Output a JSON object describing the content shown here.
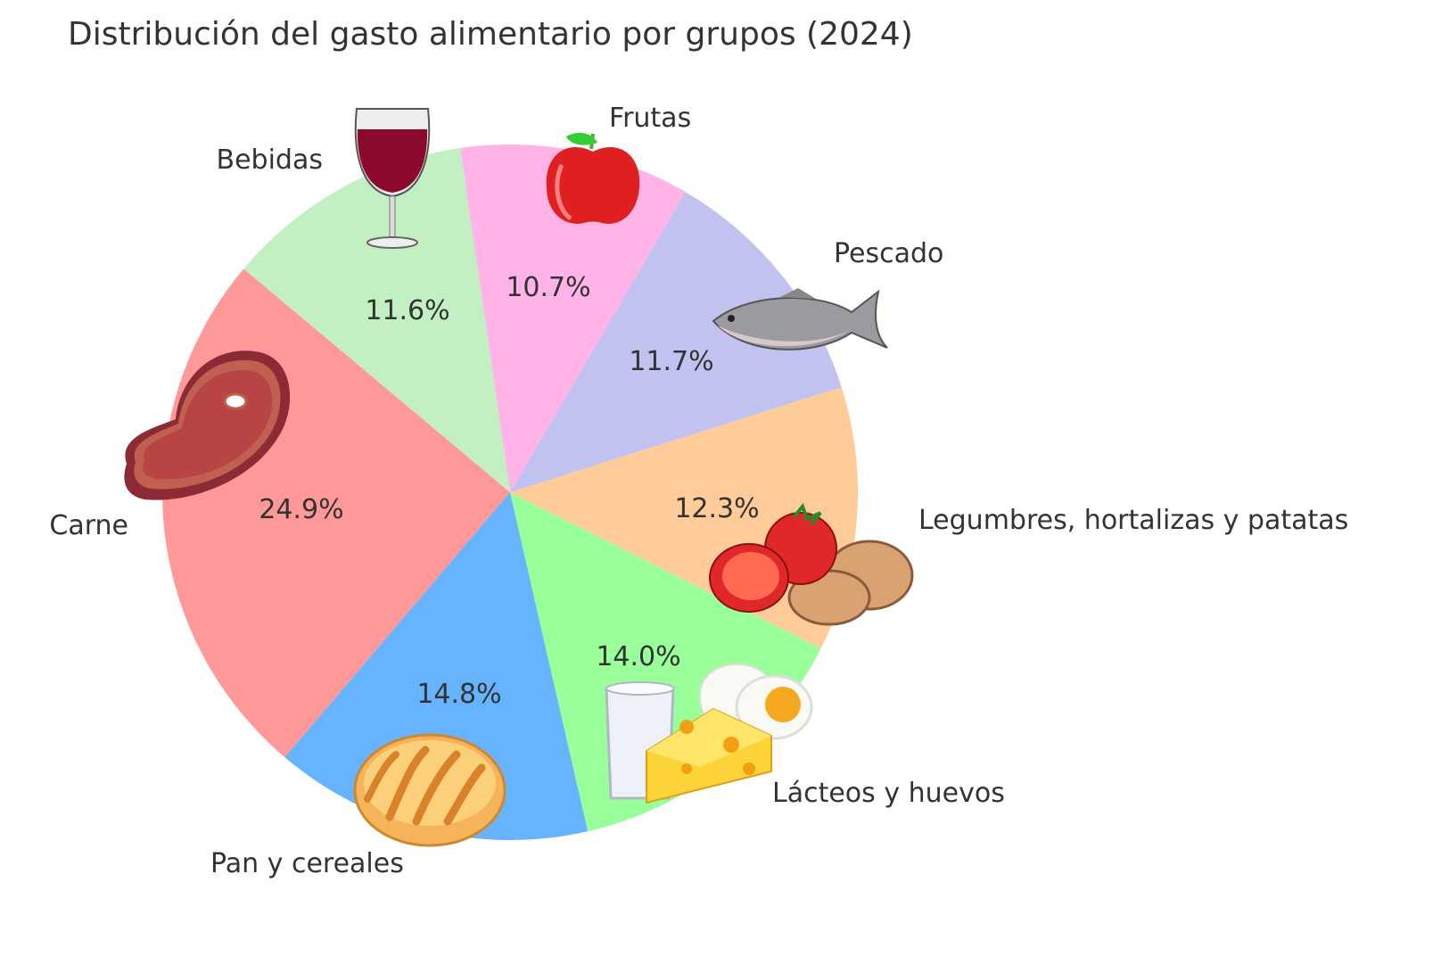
{
  "chart_data": {
    "type": "pie",
    "title": "Distribución del gasto alimentario por grupos (2024)",
    "categories": [
      "Carne",
      "Pan y cereales",
      "Lácteos y huevos",
      "Legumbres, hortalizas y patatas",
      "Pescado",
      "Frutas",
      "Bebidas"
    ],
    "values": [
      24.9,
      14.8,
      14.0,
      12.3,
      11.7,
      10.7,
      11.6
    ],
    "value_labels": [
      "24.9%",
      "14.8%",
      "14.0%",
      "12.3%",
      "11.7%",
      "10.7%",
      "11.6%"
    ],
    "colors": [
      "#ff9999",
      "#66b3ff",
      "#99ff99",
      "#ffcc99",
      "#c2c2f0",
      "#ffb3e6",
      "#c2f0c2"
    ],
    "icons": [
      "steak-icon",
      "bread-icon",
      "dairy-eggs-icon",
      "vegetables-icon",
      "fish-icon",
      "apple-icon",
      "wine-glass-icon"
    ],
    "start_angle_deg": 140,
    "direction": "counterclockwise",
    "legend": "none"
  }
}
